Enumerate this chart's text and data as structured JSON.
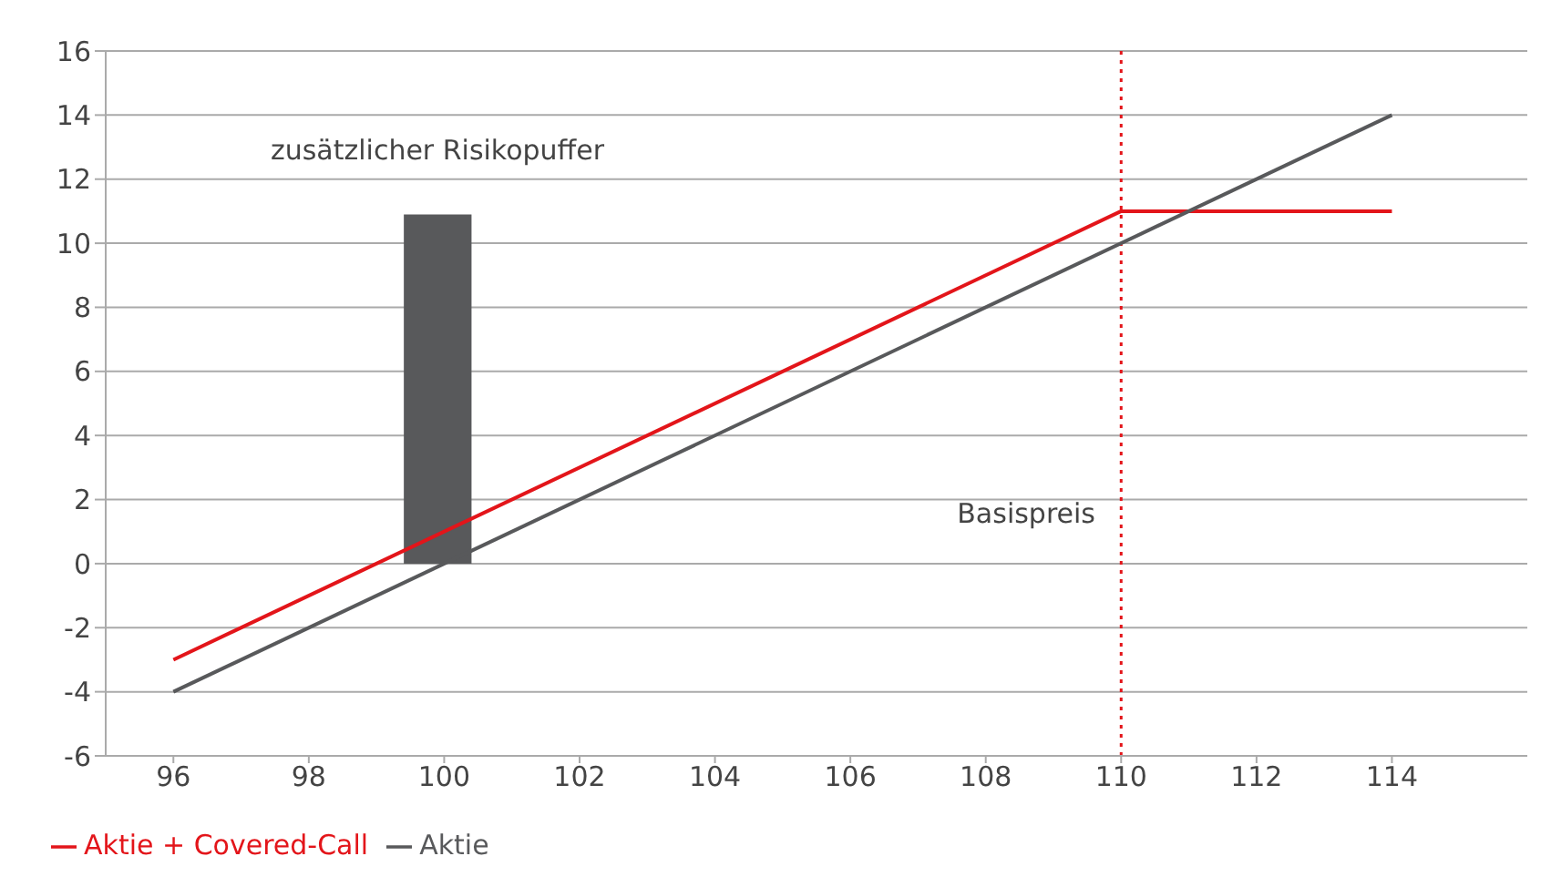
{
  "chart_data": {
    "type": "line",
    "xlim": [
      95,
      116
    ],
    "xticks": [
      96,
      98,
      100,
      102,
      104,
      106,
      108,
      110,
      112,
      114
    ],
    "ylim": [
      -6,
      16
    ],
    "yticks": [
      -6,
      -4,
      -2,
      0,
      2,
      4,
      6,
      8,
      10,
      12,
      14,
      16
    ],
    "grid": "y",
    "legend": "bottom left",
    "marker": "none",
    "line_style": "solid",
    "series": [
      {
        "name": "Aktie + Covered-Call",
        "color": "#e3151a",
        "x": [
          96,
          110,
          114
        ],
        "values": [
          -3,
          11,
          11
        ]
      },
      {
        "name": "Aktie",
        "color": "#58595b",
        "x": [
          96,
          114
        ],
        "values": [
          -4,
          14
        ]
      },
      {
        "type": "bar",
        "color": "#58595b",
        "x": [
          99.9
        ],
        "values": [
          10.9
        ]
      }
    ],
    "ref_lines": [
      {
        "axis": "x",
        "value": 110,
        "label": "Basispreis",
        "color": "#e3151a",
        "line_style": "dotted"
      }
    ],
    "annotations": [
      "zusätzlicher Risikopuffer"
    ]
  }
}
